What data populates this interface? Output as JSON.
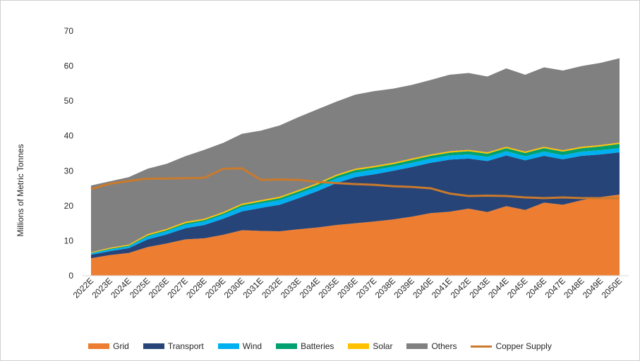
{
  "chart_data": {
    "type": "area",
    "stacked": true,
    "ylabel": "Millions of Metric Tonnes",
    "xlabel": "",
    "ylim": [
      0,
      70
    ],
    "yticks": [
      0,
      10,
      20,
      30,
      40,
      50,
      60,
      70
    ],
    "grid": false,
    "legend_position": "bottom",
    "categories": [
      "2022E",
      "2023E",
      "2024E",
      "2025E",
      "2026E",
      "2027E",
      "2028E",
      "2029E",
      "2030E",
      "2031E",
      "2032E",
      "2033E",
      "2034E",
      "2035E",
      "2036E",
      "2037E",
      "2038E",
      "2039E",
      "2040E",
      "2041E",
      "2042E",
      "2043E",
      "2044E",
      "2045E",
      "2046E",
      "2047E",
      "2048E",
      "2049E",
      "2050E"
    ],
    "series": [
      {
        "name": "Grid",
        "color": "#ED7D31",
        "values": [
          5.0,
          5.9,
          6.5,
          8.2,
          9.2,
          10.4,
          10.7,
          11.7,
          13.0,
          12.8,
          12.7,
          13.3,
          13.8,
          14.5,
          15.0,
          15.5,
          16.1,
          16.9,
          17.9,
          18.3,
          19.2,
          18.2,
          19.9,
          18.8,
          20.9,
          20.3,
          21.6,
          22.5,
          23.2
        ]
      },
      {
        "name": "Transport",
        "color": "#264478",
        "values": [
          1.0,
          1.1,
          1.4,
          2.2,
          2.6,
          3.2,
          3.8,
          4.6,
          5.4,
          6.6,
          7.6,
          8.9,
          10.4,
          12.0,
          13.2,
          13.5,
          13.9,
          14.2,
          14.4,
          14.9,
          14.3,
          14.6,
          14.5,
          14.2,
          13.4,
          13.0,
          12.7,
          12.2,
          12.1
        ]
      },
      {
        "name": "Wind",
        "color": "#00B0F0",
        "values": [
          0.4,
          0.5,
          0.5,
          0.8,
          0.9,
          1.0,
          1.0,
          1.1,
          1.3,
          1.3,
          1.3,
          1.3,
          1.3,
          1.3,
          1.3,
          1.3,
          1.2,
          1.2,
          1.2,
          1.2,
          1.2,
          1.2,
          1.2,
          1.2,
          1.2,
          1.2,
          1.2,
          1.2,
          1.2
        ]
      },
      {
        "name": "Batteries",
        "color": "#00A070",
        "values": [
          0.1,
          0.2,
          0.2,
          0.3,
          0.3,
          0.4,
          0.4,
          0.4,
          0.5,
          0.5,
          0.6,
          0.6,
          0.6,
          0.7,
          0.7,
          0.7,
          0.7,
          0.8,
          0.8,
          0.8,
          0.9,
          0.9,
          0.9,
          0.9,
          1.0,
          1.0,
          1.0,
          1.1,
          1.2
        ]
      },
      {
        "name": "Solar",
        "color": "#FFC000",
        "values": [
          0.2,
          0.3,
          0.3,
          0.4,
          0.4,
          0.4,
          0.4,
          0.4,
          0.4,
          0.4,
          0.4,
          0.4,
          0.4,
          0.4,
          0.4,
          0.4,
          0.4,
          0.4,
          0.4,
          0.4,
          0.4,
          0.4,
          0.4,
          0.4,
          0.4,
          0.4,
          0.4,
          0.4,
          0.4
        ]
      },
      {
        "name": "Others",
        "color": "#808080",
        "values": [
          19.1,
          19.0,
          19.3,
          18.7,
          18.6,
          18.8,
          19.7,
          19.8,
          20.0,
          19.9,
          20.4,
          20.9,
          21.1,
          20.9,
          21.2,
          21.4,
          21.2,
          21.1,
          21.3,
          21.9,
          22.0,
          21.7,
          22.4,
          22.0,
          22.7,
          22.8,
          23.1,
          23.5,
          24.1
        ]
      }
    ],
    "line_series": {
      "name": "Copper Supply",
      "color": "#C97A2C",
      "values": [
        24.8,
        26.3,
        27.1,
        27.8,
        27.8,
        27.9,
        28.0,
        30.6,
        30.7,
        27.4,
        27.5,
        27.4,
        26.8,
        26.5,
        26.2,
        26.0,
        25.6,
        25.4,
        25.0,
        23.5,
        22.8,
        22.9,
        22.8,
        22.4,
        22.2,
        22.4,
        22.2,
        22.2,
        22.2
      ]
    }
  }
}
